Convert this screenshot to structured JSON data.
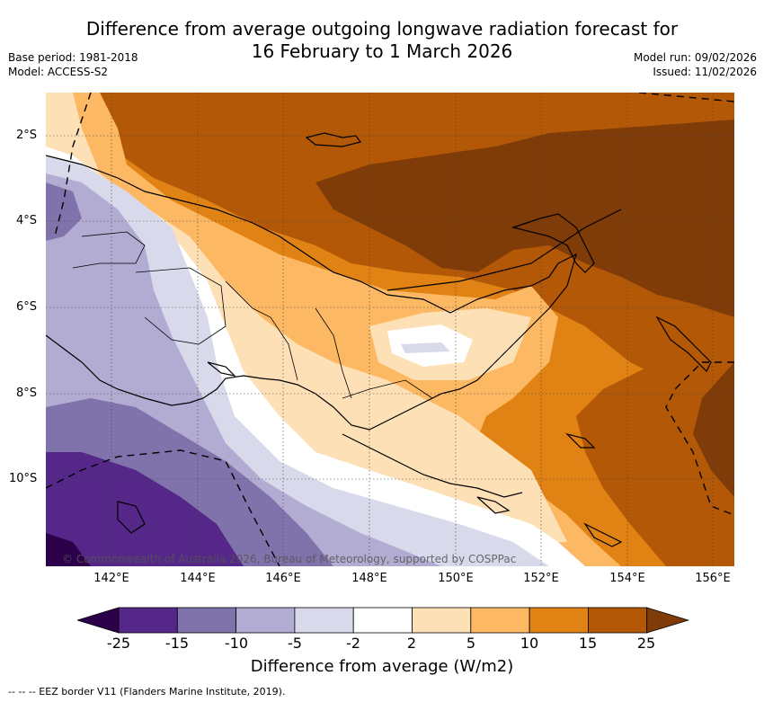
{
  "title_line1": "Difference from average outgoing longwave radiation forecast for",
  "title_line2": "16 February to 1 March 2026",
  "base_period": "Base period: 1981-2018",
  "model": "Model: ACCESS-S2",
  "model_run": "Model run: 09/02/2026",
  "issued": "Issued: 11/02/2026",
  "lat_labels": [
    "2°S",
    "4°S",
    "6°S",
    "8°S",
    "10°S"
  ],
  "lon_labels": [
    "142°E",
    "144°E",
    "146°E",
    "148°E",
    "150°E",
    "152°E",
    "154°E",
    "156°E"
  ],
  "copyright": "© Commonwealth of Australia 2026, Bureau of Meteorology, supported by COSPPac",
  "colorbar": {
    "ticks": [
      "-25",
      "-15",
      "-10",
      "-5",
      "-2",
      "2",
      "5",
      "10",
      "15",
      "25"
    ],
    "colors": [
      "#2d004b",
      "#542788",
      "#8073ac",
      "#b2abd2",
      "#d8daeb",
      "#ffffff",
      "#fee0b6",
      "#fdb863",
      "#e08214",
      "#b35806",
      "#7f3b08"
    ],
    "title": "Difference from average (W/m2)"
  },
  "footer": "--  --  -- EEZ border V11 (Flanders Marine Institute, 2019)."
}
